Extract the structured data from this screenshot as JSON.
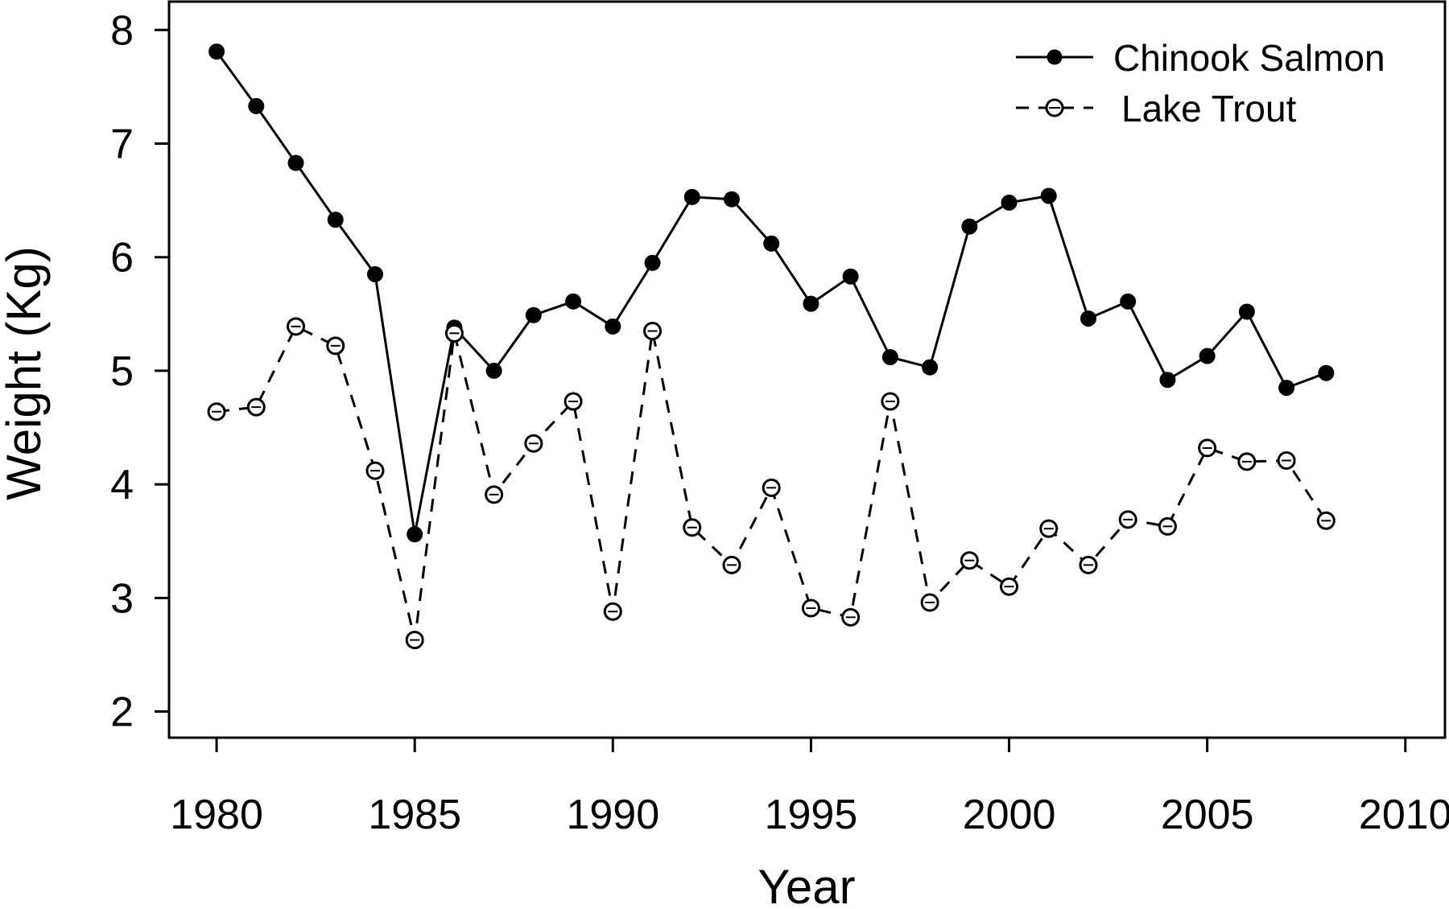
{
  "chart_data": {
    "type": "line",
    "title": "",
    "xlabel": "Year",
    "ylabel": "Weight (Kg)",
    "xlim": [
      1978.8,
      2011.0
    ],
    "ylim": [
      1.77,
      8.25
    ],
    "xticks": [
      1980,
      1985,
      1990,
      1995,
      2000,
      2005,
      2010
    ],
    "yticks": [
      2,
      3,
      4,
      5,
      6,
      7,
      8
    ],
    "xtick_labels": [
      "1980",
      "1985",
      "1990",
      "1995",
      "2000",
      "2005",
      "2010"
    ],
    "ytick_labels": [
      "2",
      "3",
      "4",
      "5",
      "6",
      "7",
      "8"
    ],
    "grid": false,
    "legend_position": "top-right",
    "x": [
      1980,
      1981,
      1982,
      1983,
      1984,
      1985,
      1986,
      1987,
      1988,
      1989,
      1990,
      1991,
      1992,
      1993,
      1994,
      1995,
      1996,
      1997,
      1998,
      1999,
      2000,
      2001,
      2002,
      2003,
      2004,
      2005,
      2006,
      2007,
      2008
    ],
    "series": [
      {
        "name": "Chinook Salmon",
        "line_style": "solid",
        "marker": "filled-circle",
        "color": "#000000",
        "values": [
          7.81,
          7.33,
          6.83,
          6.33,
          5.85,
          3.56,
          5.38,
          5.0,
          5.49,
          5.61,
          5.39,
          5.95,
          6.53,
          6.51,
          6.12,
          5.59,
          5.83,
          5.12,
          5.03,
          6.27,
          6.48,
          6.54,
          5.46,
          5.61,
          4.92,
          5.13,
          5.52,
          4.85,
          4.98
        ]
      },
      {
        "name": "Lake Trout",
        "line_style": "dashed",
        "marker": "open-circle",
        "color": "#000000",
        "values": [
          4.64,
          4.68,
          5.39,
          5.22,
          4.12,
          2.63,
          5.33,
          3.91,
          4.36,
          4.73,
          2.88,
          5.35,
          3.62,
          3.29,
          3.97,
          2.91,
          2.83,
          4.73,
          2.96,
          3.33,
          3.1,
          3.61,
          3.29,
          3.69,
          3.63,
          4.32,
          4.2,
          4.21,
          3.68
        ]
      }
    ]
  }
}
